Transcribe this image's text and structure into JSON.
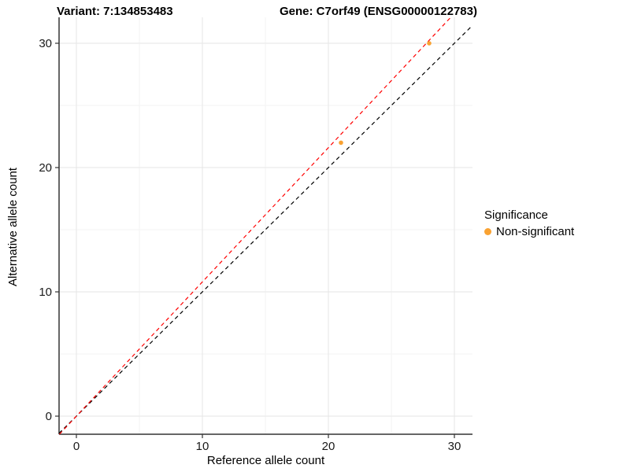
{
  "chart_data": {
    "type": "scatter",
    "titles": {
      "left": "Variant: 7:134853483",
      "right": "Gene: C7orf49 (ENSG00000122783)"
    },
    "xlabel": "Reference allele count",
    "ylabel": "Alternative allele count",
    "x_ticks": [
      0,
      10,
      20,
      30
    ],
    "y_ticks": [
      0,
      10,
      20,
      30
    ],
    "xlim": [
      -1.4,
      31.4
    ],
    "ylim": [
      -1.5,
      32.1
    ],
    "grid": "major and minor, light gray on white",
    "points": [
      {
        "x": 21,
        "y": 22,
        "significance": "Non-significant"
      },
      {
        "x": 28,
        "y": 30,
        "significance": "Non-significant"
      }
    ],
    "lines": [
      {
        "name": "identity-line",
        "slope": 1.0,
        "intercept": 0,
        "color": "#000000",
        "style": "dashed"
      },
      {
        "name": "fit-line",
        "slope": 1.08,
        "intercept": 0,
        "color": "#FF0000",
        "style": "dashed"
      }
    ],
    "legend": {
      "title": "Significance",
      "position": "right",
      "items": [
        {
          "label": "Non-significant",
          "color": "#F9A232"
        }
      ]
    },
    "colors": {
      "point": "#F9A232",
      "grid_major": "#E6E6E6",
      "grid_minor": "#F3F3F3",
      "axis": "#333333",
      "tick_text": "#1a1a1a"
    }
  }
}
